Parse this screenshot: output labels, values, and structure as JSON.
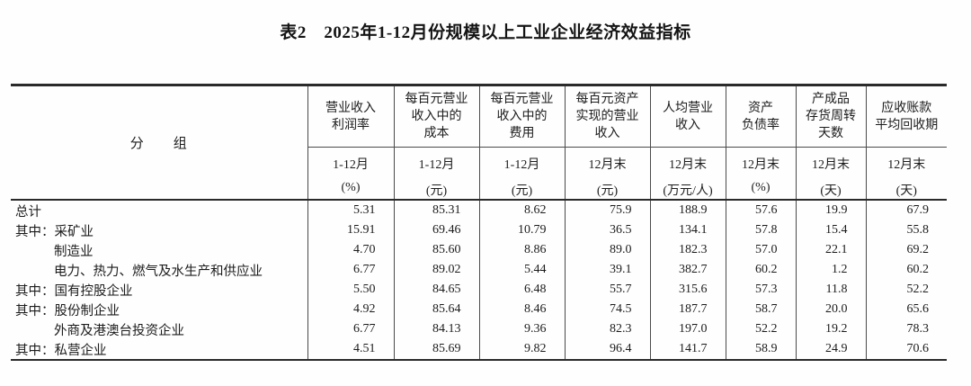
{
  "page": {
    "title": "表2　2025年1-12月份规模以上工业企业经济效益指标"
  },
  "table": {
    "group_header": "分　　组",
    "columns": [
      {
        "name": [
          "营业收入",
          "利润率"
        ],
        "period": "1-12月",
        "unit": "(%)"
      },
      {
        "name": [
          "每百元营业",
          "收入中的",
          "成本"
        ],
        "period": "1-12月",
        "unit": "(元)"
      },
      {
        "name": [
          "每百元营业",
          "收入中的",
          "费用"
        ],
        "period": "1-12月",
        "unit": "(元)"
      },
      {
        "name": [
          "每百元资产",
          "实现的营业",
          "收入"
        ],
        "period": "12月末",
        "unit": "(元)"
      },
      {
        "name": [
          "人均营业",
          "收入"
        ],
        "period": "12月末",
        "unit": "(万元/人)"
      },
      {
        "name": [
          "资产",
          "负债率"
        ],
        "period": "12月末",
        "unit": "(%)"
      },
      {
        "name": [
          "产成品",
          "存货周转",
          "天数"
        ],
        "period": "12月末",
        "unit": "(天)"
      },
      {
        "name": [
          "应收账款",
          "平均回收期"
        ],
        "period": "12月末",
        "unit": "(天)"
      }
    ],
    "rows": [
      {
        "label": "总计",
        "indent": 0,
        "values": [
          "5.31",
          "85.31",
          "8.62",
          "75.9",
          "188.9",
          "57.6",
          "19.9",
          "67.9"
        ]
      },
      {
        "label": "其中：采矿业",
        "indent": 0,
        "values": [
          "15.91",
          "69.46",
          "10.79",
          "36.5",
          "134.1",
          "57.8",
          "15.4",
          "55.8"
        ]
      },
      {
        "label": "制造业",
        "indent": 1,
        "values": [
          "4.70",
          "85.60",
          "8.86",
          "89.0",
          "182.3",
          "57.0",
          "22.1",
          "69.2"
        ]
      },
      {
        "label": "电力、热力、燃气及水生产和供应业",
        "indent": 1,
        "values": [
          "6.77",
          "89.02",
          "5.44",
          "39.1",
          "382.7",
          "60.2",
          "1.2",
          "60.2"
        ]
      },
      {
        "label": "其中：国有控股企业",
        "indent": 0,
        "values": [
          "5.50",
          "84.65",
          "6.48",
          "55.7",
          "315.6",
          "57.3",
          "11.8",
          "52.2"
        ]
      },
      {
        "label": "其中：股份制企业",
        "indent": 0,
        "values": [
          "4.92",
          "85.64",
          "8.46",
          "74.5",
          "187.7",
          "58.7",
          "20.0",
          "65.6"
        ]
      },
      {
        "label": "外商及港澳台投资企业",
        "indent": 1,
        "values": [
          "6.77",
          "84.13",
          "9.36",
          "82.3",
          "197.0",
          "52.2",
          "19.2",
          "78.3"
        ]
      },
      {
        "label": "其中：私营企业",
        "indent": 0,
        "values": [
          "4.51",
          "85.69",
          "9.82",
          "96.4",
          "141.7",
          "58.9",
          "24.9",
          "70.6"
        ]
      }
    ]
  }
}
